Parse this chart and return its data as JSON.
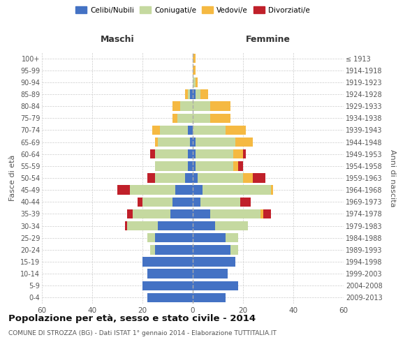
{
  "age_groups": [
    "0-4",
    "5-9",
    "10-14",
    "15-19",
    "20-24",
    "25-29",
    "30-34",
    "35-39",
    "40-44",
    "45-49",
    "50-54",
    "55-59",
    "60-64",
    "65-69",
    "70-74",
    "75-79",
    "80-84",
    "85-89",
    "90-94",
    "95-99",
    "100+"
  ],
  "birth_years": [
    "2009-2013",
    "2004-2008",
    "1999-2003",
    "1994-1998",
    "1989-1993",
    "1984-1988",
    "1979-1983",
    "1974-1978",
    "1969-1973",
    "1964-1968",
    "1959-1963",
    "1954-1958",
    "1949-1953",
    "1944-1948",
    "1939-1943",
    "1934-1938",
    "1929-1933",
    "1924-1928",
    "1919-1923",
    "1914-1918",
    "≤ 1913"
  ],
  "m_celibe": [
    18,
    20,
    18,
    20,
    15,
    15,
    14,
    9,
    8,
    7,
    3,
    2,
    2,
    1,
    2,
    0,
    0,
    1,
    0,
    0,
    0
  ],
  "m_coniugato": [
    0,
    0,
    0,
    0,
    2,
    3,
    12,
    15,
    12,
    18,
    12,
    13,
    13,
    13,
    11,
    6,
    5,
    1,
    0,
    0,
    0
  ],
  "m_vedovo": [
    0,
    0,
    0,
    0,
    0,
    0,
    0,
    0,
    0,
    0,
    0,
    0,
    0,
    1,
    3,
    2,
    3,
    1,
    0,
    0,
    0
  ],
  "m_divorziato": [
    0,
    0,
    0,
    0,
    0,
    0,
    1,
    2,
    2,
    5,
    3,
    0,
    2,
    0,
    0,
    0,
    0,
    0,
    0,
    0,
    0
  ],
  "f_nubile": [
    13,
    18,
    14,
    17,
    15,
    13,
    9,
    7,
    3,
    4,
    2,
    1,
    1,
    1,
    0,
    0,
    0,
    1,
    0,
    0,
    0
  ],
  "f_coniugata": [
    0,
    0,
    0,
    0,
    3,
    5,
    13,
    20,
    16,
    27,
    18,
    15,
    15,
    16,
    13,
    7,
    7,
    2,
    1,
    0,
    0
  ],
  "f_vedova": [
    0,
    0,
    0,
    0,
    0,
    0,
    0,
    1,
    0,
    1,
    4,
    2,
    4,
    7,
    8,
    8,
    8,
    3,
    1,
    1,
    1
  ],
  "f_divorziata": [
    0,
    0,
    0,
    0,
    0,
    0,
    0,
    3,
    4,
    0,
    5,
    2,
    1,
    0,
    0,
    0,
    0,
    0,
    0,
    0,
    0
  ],
  "colors": {
    "celibe": "#4472c4",
    "coniugato": "#c5d9a0",
    "vedovo": "#f5b942",
    "divorziato": "#c0202a"
  },
  "xlim": 60,
  "title": "Popolazione per età, sesso e stato civile - 2014",
  "subtitle": "COMUNE DI STROZZA (BG) - Dati ISTAT 1° gennaio 2014 - Elaborazione TUTTITALIA.IT",
  "ylabel_left": "Fasce di età",
  "ylabel_right": "Anni di nascita",
  "xlabel_maschi": "Maschi",
  "xlabel_femmine": "Femmine",
  "legend_labels": [
    "Celibi/Nubili",
    "Coniugati/e",
    "Vedovi/e",
    "Divorziati/e"
  ],
  "bg_color": "#ffffff",
  "grid_color": "#cccccc",
  "bar_height": 0.78
}
